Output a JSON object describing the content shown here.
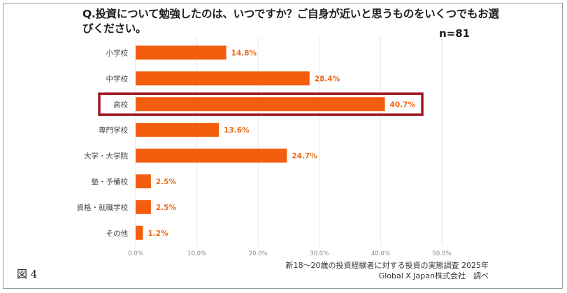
{
  "title": "Q.投資について勉強したのは、いつですか？ご自身が近いと思うものをいくつでもお選びください。",
  "sample_size": "n=81",
  "figure_label": "図 4",
  "source_line1": "新18〜20歳の投資経験者に対する投資の実態調査 2025年",
  "source_line2": "Global X Japan株式会社　調べ",
  "colors": {
    "bar": "#f25d0e",
    "value_text": "#ee6a1a",
    "highlight_border": "#a01822",
    "grid": "#e6e6e6"
  },
  "chart_data": {
    "type": "bar",
    "orientation": "horizontal",
    "categories": [
      "小学校",
      "中学校",
      "高校",
      "専門学校",
      "大学・大学院",
      "塾・予備校",
      "資格・就職学校",
      "その他"
    ],
    "values": [
      14.8,
      28.4,
      40.7,
      13.6,
      24.7,
      2.5,
      2.5,
      1.2
    ],
    "value_labels": [
      "14.8%",
      "28.4%",
      "40.7%",
      "13.6%",
      "24.7%",
      "2.5%",
      "2.5%",
      "1.2%"
    ],
    "xlim": [
      0,
      50
    ],
    "xticks": [
      0,
      10,
      20,
      30,
      40,
      50
    ],
    "xtick_labels": [
      "0.0%",
      "10.0%",
      "20.0%",
      "30.0%",
      "40.0%",
      "50.0%"
    ],
    "highlighted_category": "高校",
    "grid": true
  }
}
